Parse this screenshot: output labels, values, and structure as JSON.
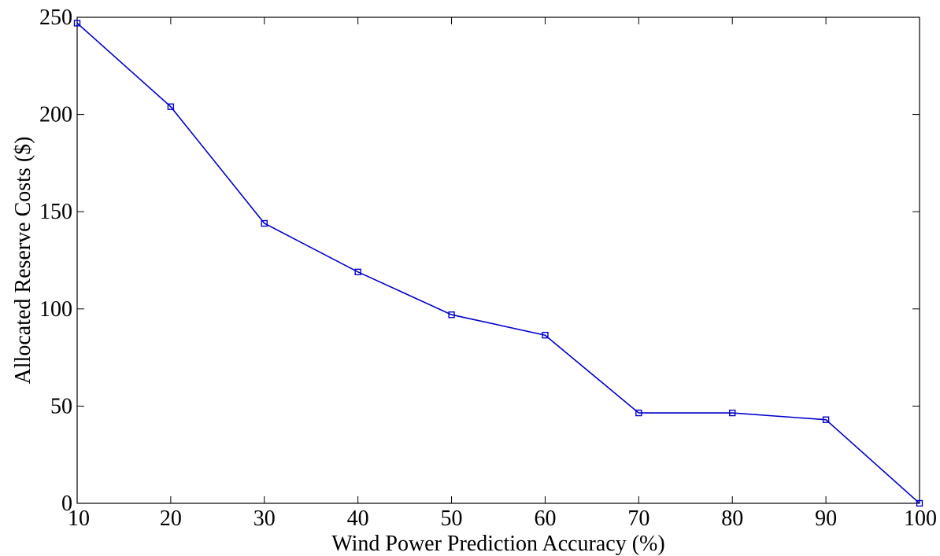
{
  "chart_data": {
    "type": "line",
    "xlabel": "Wind Power Prediction Accuracy (%)",
    "ylabel": "Allocated Reserve Costs ($)",
    "xlim": [
      10,
      100
    ],
    "ylim": [
      0,
      250
    ],
    "xticks": [
      10,
      20,
      30,
      40,
      50,
      60,
      70,
      80,
      90,
      100
    ],
    "yticks": [
      0,
      50,
      100,
      150,
      200,
      250
    ],
    "grid": false,
    "marker": "square",
    "series_color": "#0000cc",
    "x": [
      10,
      20,
      30,
      40,
      50,
      60,
      70,
      80,
      90,
      100
    ],
    "series": [
      {
        "values": [
          247,
          204,
          144,
          119,
          97,
          86.5,
          46.5,
          46.5,
          43,
          0
        ]
      }
    ]
  }
}
